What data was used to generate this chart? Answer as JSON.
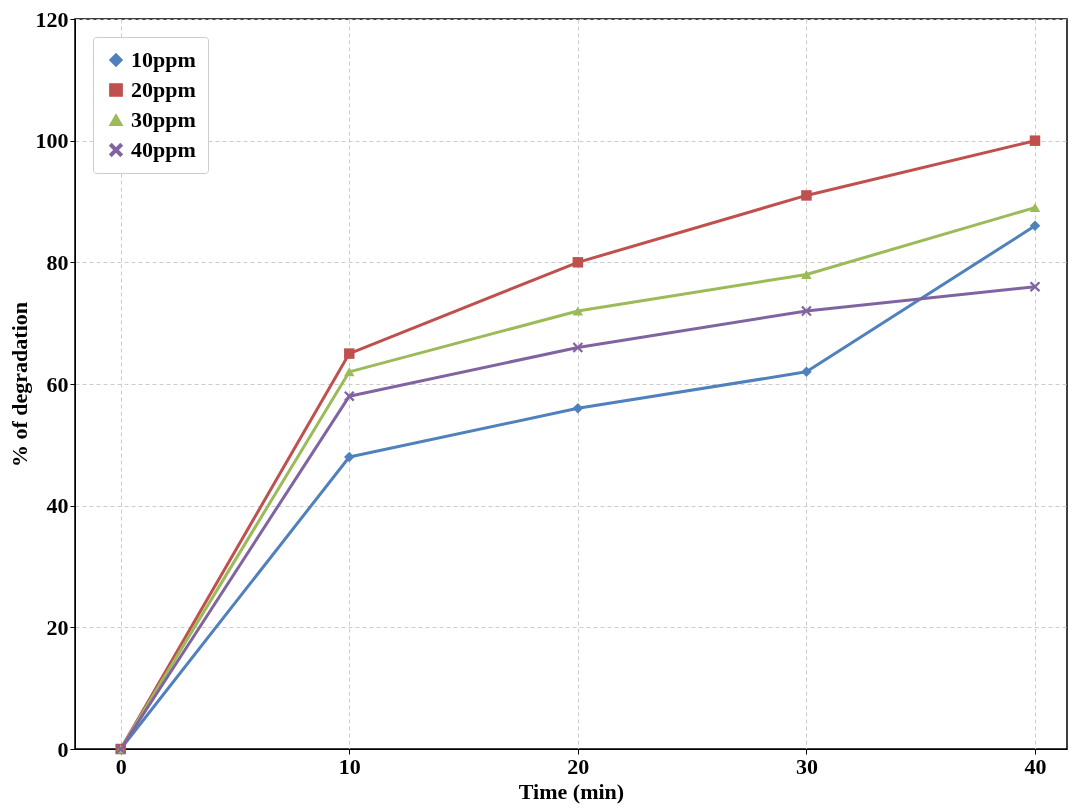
{
  "chart_data": {
    "type": "line",
    "xlabel": "Time (min)",
    "ylabel": "% of degradation",
    "x": [
      0,
      10,
      20,
      30,
      40
    ],
    "series": [
      {
        "name": "10ppm",
        "color": "#4f81bd",
        "marker": "diamond",
        "values": [
          0,
          48,
          56,
          62,
          86
        ]
      },
      {
        "name": "20ppm",
        "color": "#c0504d",
        "marker": "square",
        "values": [
          0,
          65,
          80,
          91,
          100
        ]
      },
      {
        "name": "30ppm",
        "color": "#9bbb59",
        "marker": "triangle",
        "values": [
          0,
          62,
          72,
          78,
          89
        ]
      },
      {
        "name": "40ppm",
        "color": "#8064a2",
        "marker": "cross",
        "values": [
          0,
          58,
          66,
          72,
          76
        ]
      }
    ],
    "xlim": [
      -2,
      41.4
    ],
    "xticks": [
      0,
      10,
      20,
      30,
      40
    ],
    "ylim": [
      0,
      120
    ],
    "yticks": [
      0,
      20,
      40,
      60,
      80,
      100,
      120
    ],
    "grid": true,
    "legend": "top left",
    "line_style": "solid"
  }
}
